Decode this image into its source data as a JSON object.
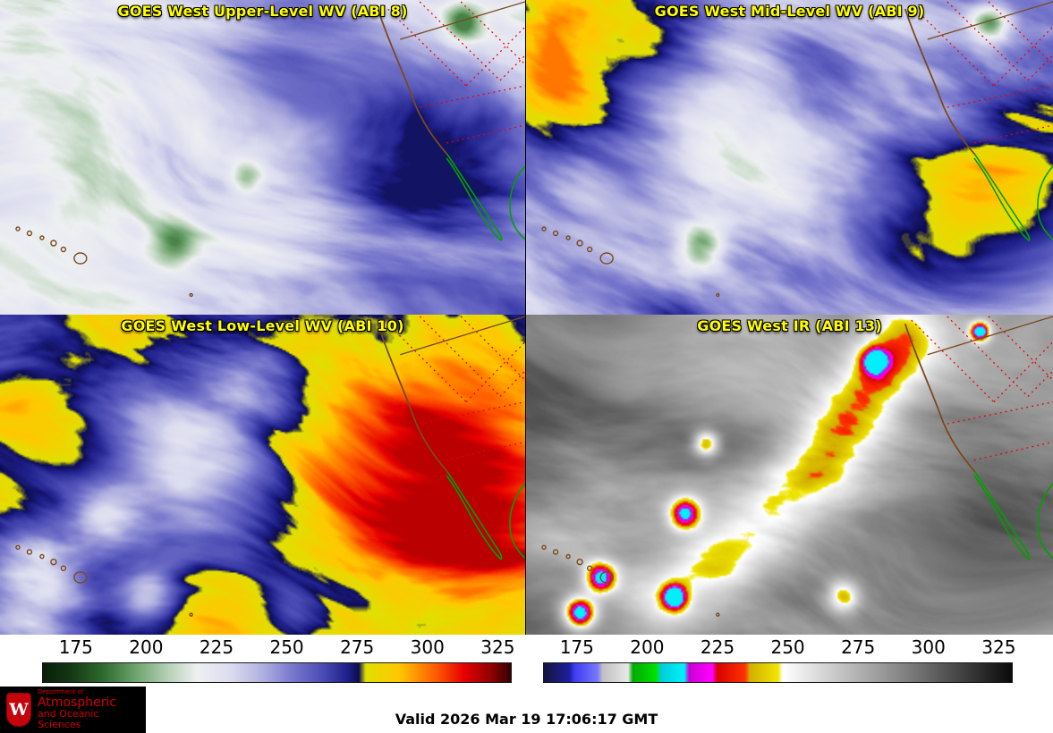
{
  "panels": [
    {
      "title": "GOES West Upper-Level WV (ABI 8)"
    },
    {
      "title": "GOES West Mid-Level WV (ABI 9)"
    },
    {
      "title": "GOES West Low-Level WV (ABI 10)"
    },
    {
      "title": "GOES West IR (ABI 13)"
    }
  ],
  "colorbar": {
    "ticks": [
      "175",
      "200",
      "225",
      "250",
      "275",
      "300",
      "325"
    ]
  },
  "footer": {
    "valid_time": "Valid 2026 Mar 19 17:06:17 GMT"
  },
  "logo": {
    "crest_letter": "W",
    "line0": "Department of",
    "line1": "Atmospheric",
    "line2": "and Oceanic Sciences"
  },
  "colors": {
    "title_yellow": "#ffff00",
    "coast_brown": "#7a4a1e",
    "mexico_green": "#00a000",
    "zone_red": "#ee0000",
    "logo_red": "#d40000",
    "crest_red": "#c5050c"
  },
  "render": {
    "wv_palette": [
      [
        0.0,
        "#081f08"
      ],
      [
        0.06,
        "#143814"
      ],
      [
        0.13,
        "#2f6b2f"
      ],
      [
        0.2,
        "#6fa56f"
      ],
      [
        0.27,
        "#b9d2b9"
      ],
      [
        0.33,
        "#eef0f2"
      ],
      [
        0.4,
        "#dcdcf0"
      ],
      [
        0.47,
        "#b0b0e0"
      ],
      [
        0.53,
        "#7a7ace"
      ],
      [
        0.6,
        "#4a4ab4"
      ],
      [
        0.65,
        "#20208c"
      ],
      [
        0.675,
        "#0c0c50"
      ],
      [
        0.69,
        "#e0e000"
      ],
      [
        0.76,
        "#ffc800"
      ],
      [
        0.84,
        "#ff5a00"
      ],
      [
        0.9,
        "#e60000"
      ],
      [
        0.96,
        "#8c0000"
      ],
      [
        1.0,
        "#320000"
      ]
    ],
    "ir_palette": [
      [
        0.0,
        "#14143c"
      ],
      [
        0.055,
        "#1e1ea0"
      ],
      [
        0.065,
        "#3c3cf0"
      ],
      [
        0.115,
        "#7878ff"
      ],
      [
        0.125,
        "#c0c0c0"
      ],
      [
        0.18,
        "#e8e8e8"
      ],
      [
        0.19,
        "#00aa00"
      ],
      [
        0.24,
        "#00e100"
      ],
      [
        0.25,
        "#00cdd7"
      ],
      [
        0.3,
        "#00f0ff"
      ],
      [
        0.31,
        "#c800d2"
      ],
      [
        0.36,
        "#ff00ff"
      ],
      [
        0.37,
        "#d70000"
      ],
      [
        0.43,
        "#ff3200"
      ],
      [
        0.44,
        "#d2af00"
      ],
      [
        0.5,
        "#f0e600"
      ],
      [
        0.51,
        "#ffffff"
      ],
      [
        0.75,
        "#8c8c8c"
      ],
      [
        1.0,
        "#0a0a0a"
      ]
    ],
    "panels": [
      {
        "palette": "wv",
        "seed": 11,
        "base": 0.42,
        "amp": 0.2,
        "angle": -0.6,
        "fx": 2.0,
        "fy": 5.0,
        "vmin": 0.16,
        "vmax": 0.67,
        "blobs": [
          [
            0.8,
            0.55,
            0.3,
            0.24
          ],
          [
            0.55,
            0.1,
            0.22,
            0.14
          ],
          [
            0.97,
            0.92,
            0.22,
            0.1
          ],
          [
            0.25,
            0.38,
            0.3,
            -0.1
          ],
          [
            0.5,
            0.78,
            0.26,
            -0.06
          ],
          [
            0.33,
            0.78,
            0.07,
            -0.2
          ],
          [
            0.88,
            0.07,
            0.06,
            -0.26
          ],
          [
            0.47,
            0.56,
            0.05,
            -0.16
          ],
          [
            0.05,
            0.05,
            0.15,
            -0.08
          ]
        ]
      },
      {
        "palette": "wv",
        "seed": 22,
        "base": 0.5,
        "amp": 0.24,
        "angle": -0.7,
        "fx": 2.0,
        "fy": 5.0,
        "vmin": 0.14,
        "vmax": 0.82,
        "blobs": [
          [
            0.9,
            0.55,
            0.3,
            0.3
          ],
          [
            0.72,
            0.78,
            0.24,
            0.18
          ],
          [
            0.04,
            0.2,
            0.26,
            0.3
          ],
          [
            0.25,
            0.1,
            0.2,
            0.2
          ],
          [
            0.33,
            0.6,
            0.26,
            -0.16
          ],
          [
            0.56,
            0.2,
            0.16,
            0.1
          ],
          [
            0.33,
            0.78,
            0.07,
            -0.28
          ],
          [
            0.88,
            0.07,
            0.06,
            -0.3
          ],
          [
            0.12,
            0.55,
            0.12,
            -0.1
          ]
        ]
      },
      {
        "palette": "wv",
        "seed": 33,
        "base": 0.7,
        "amp": 0.24,
        "angle": -0.5,
        "fx": 2.0,
        "fy": 4.5,
        "vmin": 0.05,
        "vmax": 0.93,
        "blobs": [
          [
            0.78,
            0.45,
            0.34,
            0.18
          ],
          [
            0.95,
            0.7,
            0.28,
            0.12
          ],
          [
            0.05,
            0.32,
            0.22,
            0.08
          ],
          [
            0.35,
            0.42,
            0.28,
            -0.32
          ],
          [
            0.47,
            0.18,
            0.14,
            -0.18
          ],
          [
            0.08,
            0.82,
            0.16,
            -0.38
          ],
          [
            0.28,
            0.88,
            0.1,
            -0.28
          ],
          [
            0.55,
            0.95,
            0.12,
            -0.15
          ],
          [
            0.2,
            0.65,
            0.1,
            -0.2
          ]
        ]
      },
      {
        "palette": "ir",
        "seed": 44,
        "base": 0.74,
        "amp": 0.15,
        "angle": -0.5,
        "fx": 2.5,
        "fy": 5.0,
        "vmin": 0.3,
        "vmax": 0.97,
        "blobs": [
          [
            0.72,
            0.06,
            0.12,
            -0.2
          ],
          [
            0.67,
            0.18,
            0.12,
            -0.22
          ],
          [
            0.61,
            0.32,
            0.13,
            -0.22
          ],
          [
            0.55,
            0.47,
            0.13,
            -0.22
          ],
          [
            0.46,
            0.62,
            0.14,
            -0.22
          ],
          [
            0.36,
            0.78,
            0.13,
            -0.22
          ],
          [
            0.26,
            0.9,
            0.13,
            -0.2
          ],
          [
            0.6,
            0.88,
            0.05,
            -0.3
          ],
          [
            0.3,
            0.62,
            0.05,
            -0.42
          ],
          [
            0.34,
            0.4,
            0.04,
            -0.36
          ],
          [
            0.14,
            0.82,
            0.05,
            -0.45
          ],
          [
            0.28,
            0.88,
            0.04,
            -0.42
          ],
          [
            0.1,
            0.93,
            0.05,
            -0.5
          ],
          [
            0.66,
            0.14,
            0.04,
            -0.3
          ],
          [
            0.86,
            0.05,
            0.03,
            -0.5
          ],
          [
            0.88,
            0.5,
            0.25,
            0.1
          ],
          [
            0.1,
            0.15,
            0.2,
            0.05
          ]
        ]
      }
    ]
  }
}
